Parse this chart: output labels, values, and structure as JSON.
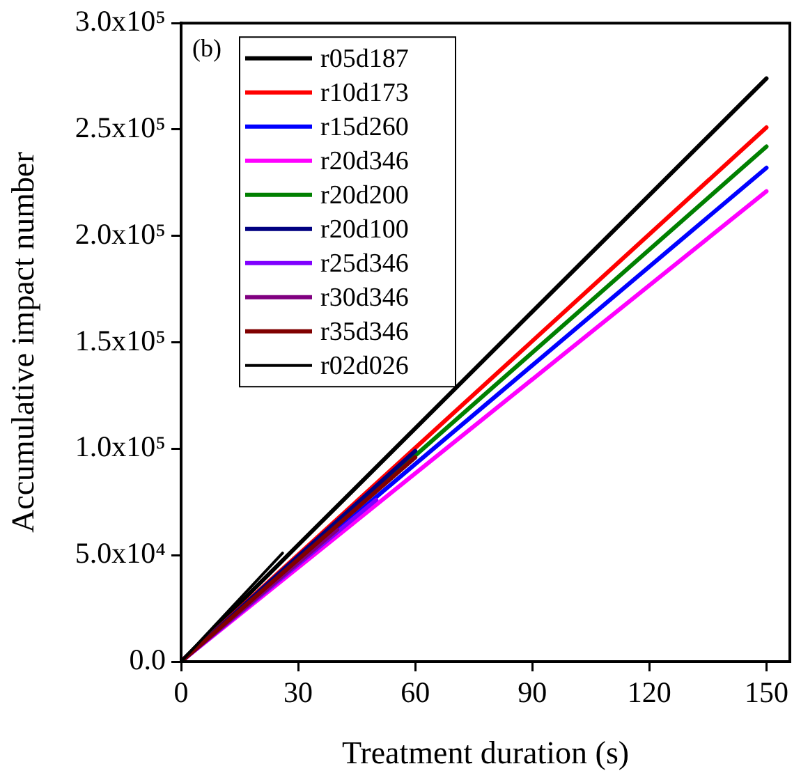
{
  "chart_data": {
    "type": "line",
    "xlabel": "Treatment duration (s)",
    "ylabel": "Accumulative impact number",
    "annotations": [
      "(b)"
    ],
    "xlim": [
      0,
      156
    ],
    "xticks": [
      0,
      30,
      60,
      90,
      120,
      150
    ],
    "ylim": [
      0,
      300000
    ],
    "yticks": [
      {
        "value": 0,
        "label": "0.0"
      },
      {
        "value": 50000,
        "label": "5.0x10⁴"
      },
      {
        "value": 100000,
        "label": "1.0x10⁵"
      },
      {
        "value": 150000,
        "label": "1.5x10⁵"
      },
      {
        "value": 200000,
        "label": "2.0x10⁵"
      },
      {
        "value": 250000,
        "label": "2.5x10⁵"
      },
      {
        "value": 300000,
        "label": "3.0x10⁵"
      }
    ],
    "grid": false,
    "legend": "top left",
    "marker": "none",
    "line_style": "solid",
    "series": [
      {
        "name": "r05d187",
        "color": "#000000",
        "x": [
          0,
          150
        ],
        "values": [
          0,
          274000
        ]
      },
      {
        "name": "r10d173",
        "color": "#ff0000",
        "x": [
          0,
          150
        ],
        "values": [
          0,
          251000
        ]
      },
      {
        "name": "r15d260",
        "color": "#0000ff",
        "x": [
          0,
          150
        ],
        "values": [
          0,
          232000
        ]
      },
      {
        "name": "r20d346",
        "color": "#ff00ff",
        "x": [
          0,
          150
        ],
        "values": [
          0,
          221000
        ]
      },
      {
        "name": "r20d200",
        "color": "#008000",
        "x": [
          0,
          150
        ],
        "values": [
          0,
          242000
        ]
      },
      {
        "name": "r20d100",
        "color": "#000080",
        "x": [
          0,
          60
        ],
        "values": [
          0,
          99000
        ]
      },
      {
        "name": "r25d346",
        "color": "#8000ff",
        "x": [
          0,
          50
        ],
        "values": [
          0,
          76000
        ]
      },
      {
        "name": "r30d346",
        "color": "#800080",
        "x": [
          0,
          40
        ],
        "values": [
          0,
          62000
        ]
      },
      {
        "name": "r35d346",
        "color": "#800000",
        "x": [
          0,
          60
        ],
        "values": [
          0,
          96000
        ]
      },
      {
        "name": "r02d026",
        "color": "#000000",
        "x": [
          0,
          26
        ],
        "values": [
          0,
          51000
        ]
      }
    ]
  }
}
